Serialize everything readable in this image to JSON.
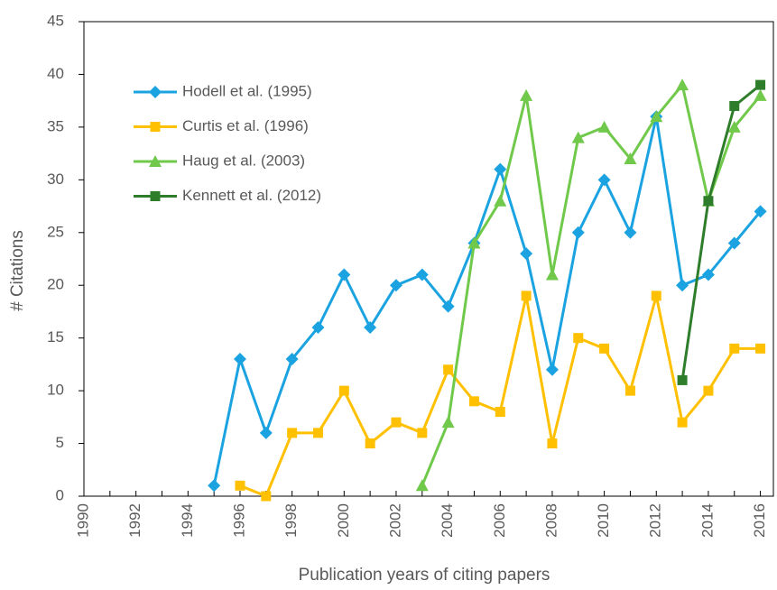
{
  "chart_data": {
    "type": "line",
    "x_label": "Publication years of citing papers",
    "y_label": "# Citations",
    "x": [
      1990,
      1991,
      1992,
      1993,
      1994,
      1995,
      1996,
      1997,
      1998,
      1999,
      2000,
      2001,
      2002,
      2003,
      2004,
      2005,
      2006,
      2007,
      2008,
      2009,
      2010,
      2011,
      2012,
      2013,
      2014,
      2015,
      2016
    ],
    "series": [
      {
        "name": "Hodell et al. (1995)",
        "color": "#1aa3e0",
        "marker": "diamond",
        "values": [
          null,
          null,
          null,
          null,
          null,
          1,
          13,
          6,
          13,
          16,
          21,
          16,
          20,
          21,
          18,
          24,
          31,
          23,
          12,
          25,
          30,
          25,
          36,
          20,
          21,
          24,
          27
        ]
      },
      {
        "name": "Curtis et al. (1996)",
        "color": "#ffc000",
        "marker": "square",
        "values": [
          null,
          null,
          null,
          null,
          null,
          null,
          1,
          0,
          6,
          6,
          10,
          5,
          7,
          6,
          12,
          9,
          8,
          19,
          5,
          15,
          14,
          10,
          19,
          7,
          10,
          14,
          14
        ]
      },
      {
        "name": "Haug et al. (2003)",
        "color": "#70c94a",
        "marker": "triangle",
        "values": [
          null,
          null,
          null,
          null,
          null,
          null,
          null,
          null,
          null,
          null,
          null,
          null,
          null,
          1,
          7,
          24,
          28,
          38,
          21,
          34,
          35,
          32,
          36,
          39,
          28,
          35,
          38
        ]
      },
      {
        "name": "Kennett et al. (2012)",
        "color": "#2e7d2a",
        "marker": "square",
        "values": [
          null,
          null,
          null,
          null,
          null,
          null,
          null,
          null,
          null,
          null,
          null,
          null,
          null,
          null,
          null,
          null,
          null,
          null,
          null,
          null,
          null,
          null,
          null,
          11,
          28,
          37,
          39
        ]
      }
    ],
    "xlim": [
      1990,
      2016.5
    ],
    "xticks": [
      1990,
      1992,
      1994,
      1996,
      1998,
      2000,
      2002,
      2004,
      2006,
      2008,
      2010,
      2012,
      2014,
      2016
    ],
    "ylim": [
      0,
      45
    ],
    "yticks": [
      0,
      5,
      10,
      15,
      20,
      25,
      30,
      35,
      40,
      45
    ],
    "legend": "upper-left",
    "grid": false
  }
}
